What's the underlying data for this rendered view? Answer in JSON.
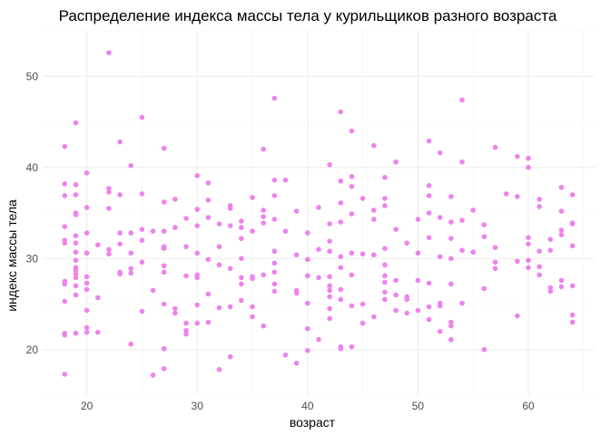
{
  "chart_data": {
    "type": "scatter",
    "title": "Распределение индекса массы тела у курильщиков разного возраста",
    "xlabel": "возраст",
    "ylabel": "индекс массы тела",
    "xlim": [
      16,
      66
    ],
    "ylim": [
      15,
      55
    ],
    "xticks": [
      20,
      30,
      40,
      50,
      60
    ],
    "yticks": [
      20,
      30,
      40,
      50
    ],
    "grid": true,
    "point_color": "#ee82ee",
    "points": [
      [
        18,
        42.3
      ],
      [
        18,
        38.2
      ],
      [
        18,
        36.9
      ],
      [
        18,
        33.5
      ],
      [
        18,
        32.0
      ],
      [
        18,
        31.7
      ],
      [
        18,
        27.5
      ],
      [
        18,
        27.2
      ],
      [
        18,
        25.3
      ],
      [
        18,
        21.8
      ],
      [
        18,
        21.6
      ],
      [
        18,
        17.3
      ],
      [
        19,
        44.9
      ],
      [
        19,
        38.1
      ],
      [
        19,
        37.0
      ],
      [
        19,
        35.0
      ],
      [
        19,
        34.8
      ],
      [
        19,
        32.5
      ],
      [
        19,
        31.7
      ],
      [
        19,
        30.7
      ],
      [
        19,
        29.8
      ],
      [
        19,
        29.0
      ],
      [
        19,
        28.7
      ],
      [
        19,
        28.3
      ],
      [
        19,
        27.9
      ],
      [
        19,
        27.0
      ],
      [
        19,
        26.0
      ],
      [
        19,
        21.8
      ],
      [
        20,
        39.4
      ],
      [
        20,
        35.6
      ],
      [
        20,
        32.8
      ],
      [
        20,
        30.6
      ],
      [
        20,
        28.0
      ],
      [
        20,
        27.3
      ],
      [
        20,
        26.6
      ],
      [
        20,
        24.3
      ],
      [
        20,
        22.4
      ],
      [
        20,
        21.9
      ],
      [
        21,
        31.5
      ],
      [
        21,
        25.7
      ],
      [
        21,
        21.9
      ],
      [
        22,
        52.6
      ],
      [
        22,
        37.7
      ],
      [
        22,
        37.3
      ],
      [
        22,
        35.5
      ],
      [
        22,
        31.0
      ],
      [
        22,
        30.5
      ],
      [
        23,
        42.8
      ],
      [
        23,
        37.0
      ],
      [
        23,
        32.8
      ],
      [
        23,
        31.6
      ],
      [
        23,
        28.5
      ],
      [
        23,
        28.3
      ],
      [
        24,
        40.2
      ],
      [
        24,
        32.8
      ],
      [
        24,
        30.6
      ],
      [
        24,
        28.9
      ],
      [
        24,
        28.4
      ],
      [
        24,
        20.6
      ],
      [
        25,
        45.5
      ],
      [
        25,
        37.1
      ],
      [
        25,
        33.2
      ],
      [
        25,
        32.0
      ],
      [
        25,
        29.6
      ],
      [
        25,
        24.2
      ],
      [
        26,
        33.0
      ],
      [
        26,
        26.5
      ],
      [
        26,
        17.2
      ],
      [
        27,
        42.1
      ],
      [
        27,
        36.2
      ],
      [
        27,
        33.0
      ],
      [
        27,
        31.3
      ],
      [
        27,
        31.1
      ],
      [
        27,
        29.2
      ],
      [
        27,
        28.5
      ],
      [
        27,
        25.0
      ],
      [
        27,
        20.1
      ],
      [
        27,
        17.9
      ],
      [
        28,
        36.5
      ],
      [
        28,
        33.4
      ],
      [
        28,
        24.5
      ],
      [
        28,
        24.0
      ],
      [
        29,
        34.4
      ],
      [
        29,
        31.3
      ],
      [
        29,
        28.1
      ],
      [
        29,
        22.9
      ],
      [
        29,
        22.1
      ],
      [
        29,
        21.7
      ],
      [
        30,
        39.1
      ],
      [
        30,
        35.4
      ],
      [
        30,
        33.6
      ],
      [
        30,
        30.6
      ],
      [
        30,
        28.2
      ],
      [
        30,
        27.9
      ],
      [
        30,
        24.9
      ],
      [
        30,
        22.9
      ],
      [
        31,
        38.3
      ],
      [
        31,
        36.4
      ],
      [
        31,
        34.5
      ],
      [
        31,
        29.9
      ],
      [
        31,
        26.1
      ],
      [
        31,
        23.0
      ],
      [
        32,
        33.8
      ],
      [
        32,
        31.3
      ],
      [
        32,
        29.3
      ],
      [
        32,
        24.6
      ],
      [
        32,
        17.8
      ],
      [
        33,
        35.8
      ],
      [
        33,
        35.5
      ],
      [
        33,
        33.6
      ],
      [
        33,
        28.9
      ],
      [
        33,
        24.7
      ],
      [
        33,
        19.2
      ],
      [
        34,
        34.1
      ],
      [
        34,
        33.4
      ],
      [
        34,
        32.2
      ],
      [
        34,
        30.0
      ],
      [
        34,
        27.9
      ],
      [
        34,
        27.2
      ],
      [
        34,
        25.4
      ],
      [
        35,
        36.7
      ],
      [
        35,
        33.0
      ],
      [
        35,
        28.0
      ],
      [
        35,
        27.8
      ],
      [
        35,
        24.7
      ],
      [
        35,
        23.6
      ],
      [
        36,
        42.0
      ],
      [
        36,
        35.3
      ],
      [
        36,
        34.6
      ],
      [
        36,
        33.9
      ],
      [
        36,
        28.2
      ],
      [
        36,
        22.6
      ],
      [
        37,
        47.6
      ],
      [
        37,
        38.6
      ],
      [
        37,
        36.9
      ],
      [
        37,
        34.3
      ],
      [
        37,
        30.8
      ],
      [
        37,
        29.5
      ],
      [
        37,
        28.5
      ],
      [
        37,
        27.2
      ],
      [
        37,
        26.4
      ],
      [
        38,
        38.6
      ],
      [
        38,
        33.0
      ],
      [
        38,
        19.4
      ],
      [
        39,
        35.2
      ],
      [
        39,
        30.4
      ],
      [
        39,
        26.5
      ],
      [
        39,
        26.2
      ],
      [
        39,
        18.5
      ],
      [
        40,
        32.8
      ],
      [
        40,
        29.9
      ],
      [
        40,
        28.1
      ],
      [
        40,
        25.1
      ],
      [
        40,
        22.3
      ],
      [
        40,
        19.9
      ],
      [
        41,
        35.6
      ],
      [
        41,
        31.0
      ],
      [
        41,
        27.9
      ],
      [
        41,
        21.1
      ],
      [
        42,
        40.3
      ],
      [
        42,
        33.8
      ],
      [
        42,
        31.9
      ],
      [
        42,
        30.8
      ],
      [
        42,
        28.0
      ],
      [
        42,
        27.0
      ],
      [
        42,
        26.5
      ],
      [
        42,
        25.8
      ],
      [
        42,
        24.5
      ],
      [
        42,
        23.4
      ],
      [
        43,
        46.1
      ],
      [
        43,
        38.5
      ],
      [
        43,
        36.1
      ],
      [
        43,
        34.0
      ],
      [
        43,
        30.2
      ],
      [
        43,
        29.0
      ],
      [
        43,
        26.6
      ],
      [
        43,
        25.5
      ],
      [
        43,
        20.3
      ],
      [
        43,
        20.1
      ],
      [
        44,
        44.0
      ],
      [
        44,
        39.0
      ],
      [
        44,
        37.9
      ],
      [
        44,
        34.9
      ],
      [
        44,
        30.6
      ],
      [
        44,
        28.2
      ],
      [
        44,
        24.8
      ],
      [
        44,
        20.3
      ],
      [
        45,
        36.6
      ],
      [
        45,
        30.5
      ],
      [
        45,
        25.0
      ],
      [
        45,
        22.9
      ],
      [
        46,
        42.4
      ],
      [
        46,
        35.3
      ],
      [
        46,
        34.3
      ],
      [
        46,
        30.4
      ],
      [
        46,
        23.6
      ],
      [
        47,
        38.9
      ],
      [
        47,
        36.6
      ],
      [
        47,
        35.8
      ],
      [
        47,
        31.1
      ],
      [
        47,
        29.3
      ],
      [
        47,
        28.1
      ],
      [
        47,
        27.4
      ],
      [
        47,
        26.3
      ],
      [
        47,
        25.5
      ],
      [
        48,
        40.6
      ],
      [
        48,
        33.2
      ],
      [
        48,
        27.6
      ],
      [
        48,
        26.0
      ],
      [
        48,
        24.3
      ],
      [
        49,
        31.7
      ],
      [
        49,
        25.8
      ],
      [
        49,
        25.5
      ],
      [
        49,
        24.0
      ],
      [
        50,
        34.3
      ],
      [
        50,
        30.6
      ],
      [
        50,
        27.6
      ],
      [
        50,
        24.3
      ],
      [
        51,
        42.9
      ],
      [
        51,
        38.0
      ],
      [
        51,
        36.9
      ],
      [
        51,
        35.0
      ],
      [
        51,
        32.3
      ],
      [
        51,
        27.3
      ],
      [
        51,
        24.7
      ],
      [
        51,
        23.3
      ],
      [
        52,
        41.6
      ],
      [
        52,
        34.5
      ],
      [
        52,
        30.2
      ],
      [
        52,
        25.1
      ],
      [
        52,
        24.8
      ],
      [
        52,
        22.0
      ],
      [
        53,
        36.8
      ],
      [
        53,
        34.0
      ],
      [
        53,
        32.2
      ],
      [
        53,
        30.0
      ],
      [
        53,
        27.2
      ],
      [
        53,
        23.0
      ],
      [
        53,
        22.6
      ],
      [
        53,
        21.1
      ],
      [
        54,
        47.4
      ],
      [
        54,
        40.6
      ],
      [
        54,
        34.2
      ],
      [
        54,
        30.9
      ],
      [
        54,
        25.1
      ],
      [
        55,
        35.3
      ],
      [
        55,
        30.7
      ],
      [
        56,
        33.7
      ],
      [
        56,
        32.4
      ],
      [
        56,
        26.7
      ],
      [
        56,
        20.0
      ],
      [
        57,
        42.2
      ],
      [
        57,
        31.2
      ],
      [
        57,
        29.6
      ],
      [
        57,
        28.9
      ],
      [
        58,
        37.1
      ],
      [
        59,
        41.2
      ],
      [
        59,
        36.8
      ],
      [
        59,
        29.7
      ],
      [
        59,
        23.7
      ],
      [
        60,
        41.0
      ],
      [
        60,
        40.0
      ],
      [
        60,
        32.3
      ],
      [
        60,
        31.6
      ],
      [
        60,
        29.8
      ],
      [
        60,
        29.0
      ],
      [
        61,
        36.5
      ],
      [
        61,
        35.7
      ],
      [
        61,
        30.8
      ],
      [
        61,
        29.1
      ],
      [
        61,
        28.2
      ],
      [
        62,
        32.1
      ],
      [
        62,
        30.9
      ],
      [
        62,
        26.8
      ],
      [
        62,
        26.4
      ],
      [
        63,
        37.8
      ],
      [
        63,
        35.2
      ],
      [
        63,
        33.1
      ],
      [
        63,
        32.6
      ],
      [
        63,
        27.6
      ],
      [
        63,
        26.9
      ],
      [
        64,
        37.0
      ],
      [
        64,
        33.9
      ],
      [
        64,
        33.8
      ],
      [
        64,
        31.4
      ],
      [
        64,
        27.0
      ],
      [
        64,
        23.8
      ],
      [
        64,
        23.0
      ]
    ]
  }
}
